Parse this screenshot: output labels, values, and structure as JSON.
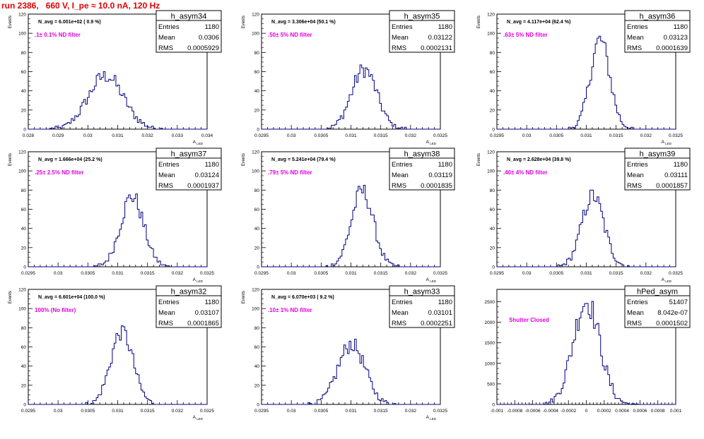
{
  "page_title": "run 2386,   660 V, I_pe ≈ 10.0 nA, 120 Hz",
  "colors": {
    "histogram": "#000080",
    "frame": "#000000",
    "annotation": "#e000e0",
    "title": "#e00000"
  },
  "chart_data": [
    {
      "type": "histogram",
      "name": "h_asym34",
      "stats": {
        "entries": "1180",
        "mean": "0.0306",
        "rms": "0.0005929"
      },
      "navg": "N_avg = 6.001e+02 ( 0.9 %)",
      "filter": ".1± 0.1% ND filter",
      "ylabel": "Events",
      "xlabel": "A_LED",
      "x_ticks": [
        "0.028",
        "0.029",
        "0.03",
        "0.031",
        "0.032",
        "0.033",
        "0.034"
      ],
      "xlim": [
        0.028,
        0.034
      ],
      "y_ticks": [
        "0",
        "20",
        "40",
        "60",
        "80",
        "100",
        "120"
      ],
      "ylim": [
        0,
        120
      ],
      "center": 0.0306,
      "sigma": 0.00059,
      "peak": 60
    },
    {
      "type": "histogram",
      "name": "h_asym35",
      "stats": {
        "entries": "1180",
        "mean": "0.03122",
        "rms": "0.0002131"
      },
      "navg": "N_avg = 3.306e+04 (50.1 %)",
      "filter": ".50± 5% ND filter",
      "ylabel": "Events",
      "xlabel": "A_LED",
      "x_ticks": [
        "0.0295",
        "0.03",
        "0.0305",
        "0.031",
        "0.0315",
        "0.032",
        "0.0325"
      ],
      "xlim": [
        0.0295,
        0.0325
      ],
      "y_ticks": [
        "0",
        "20",
        "40",
        "60",
        "80",
        "100",
        "120"
      ],
      "ylim": [
        0,
        120
      ],
      "center": 0.03122,
      "sigma": 0.000213,
      "peak": 67
    },
    {
      "type": "histogram",
      "name": "h_asym36",
      "stats": {
        "entries": "1180",
        "mean": "0.03123",
        "rms": "0.0001639"
      },
      "navg": "N_avg = 4.117e+04 (62.4 %)",
      "filter": ".63± 5% ND filter",
      "ylabel": "Events",
      "xlabel": "A_LED",
      "x_ticks": [
        "0.0295",
        "0.03",
        "0.0305",
        "0.031",
        "0.0315",
        "0.032",
        "0.0325"
      ],
      "xlim": [
        0.0295,
        0.0325
      ],
      "y_ticks": [
        "0",
        "20",
        "40",
        "60",
        "80",
        "100",
        "120"
      ],
      "ylim": [
        0,
        120
      ],
      "center": 0.03123,
      "sigma": 0.000164,
      "peak": 100
    },
    {
      "type": "histogram",
      "name": "h_asym37",
      "stats": {
        "entries": "1180",
        "mean": "0.03124",
        "rms": "0.0001937"
      },
      "navg": "N_avg = 1.666e+04 (25.2 %)",
      "filter": ".25± 2.5% ND filter",
      "ylabel": "Events",
      "xlabel": "A_LED",
      "x_ticks": [
        "0.0295",
        "0.03",
        "0.0305",
        "0.031",
        "0.0315",
        "0.032",
        "0.0325"
      ],
      "xlim": [
        0.0295,
        0.0325
      ],
      "y_ticks": [
        "0",
        "20",
        "40",
        "60",
        "80",
        "100",
        "120"
      ],
      "ylim": [
        0,
        120
      ],
      "center": 0.03124,
      "sigma": 0.000194,
      "peak": 79
    },
    {
      "type": "histogram",
      "name": "h_asym38",
      "stats": {
        "entries": "1180",
        "mean": "0.03119",
        "rms": "0.0001835"
      },
      "navg": "N_avg = 5.241e+04 (79.4 %)",
      "filter": ".79± 5% ND filter",
      "ylabel": "Events",
      "xlabel": "A_LED",
      "x_ticks": [
        "0.0295",
        "0.03",
        "0.0305",
        "0.031",
        "0.0315",
        "0.032",
        "0.0325"
      ],
      "xlim": [
        0.0295,
        0.0325
      ],
      "y_ticks": [
        "0",
        "20",
        "40",
        "60",
        "80",
        "100",
        "120"
      ],
      "ylim": [
        0,
        120
      ],
      "center": 0.03119,
      "sigma": 0.000184,
      "peak": 85
    },
    {
      "type": "histogram",
      "name": "h_asym39",
      "stats": {
        "entries": "1180",
        "mean": "0.03111",
        "rms": "0.0001857"
      },
      "navg": "N_avg = 2.628e+04 (39.8 %)",
      "filter": ".40± 4% ND filter",
      "ylabel": "Events",
      "xlabel": "A_LED",
      "x_ticks": [
        "0.0295",
        "0.03",
        "0.0305",
        "0.031",
        "0.0315",
        "0.032",
        "0.0325"
      ],
      "xlim": [
        0.0295,
        0.0325
      ],
      "y_ticks": [
        "0",
        "20",
        "40",
        "60",
        "80",
        "100",
        "120"
      ],
      "ylim": [
        0,
        120
      ],
      "center": 0.03111,
      "sigma": 0.000186,
      "peak": 80
    },
    {
      "type": "histogram",
      "name": "h_asym32",
      "stats": {
        "entries": "1180",
        "mean": "0.03107",
        "rms": "0.0001865"
      },
      "navg": "N_avg = 6.601e+04 (100.0 %)",
      "filter": "100% (No filter)",
      "ylabel": "Events",
      "xlabel": "A_LED",
      "x_ticks": [
        "0.0295",
        "0.03",
        "0.0305",
        "0.031",
        "0.0315",
        "0.032",
        "0.0325"
      ],
      "xlim": [
        0.0295,
        0.0325
      ],
      "y_ticks": [
        "0",
        "20",
        "40",
        "60",
        "80",
        "100",
        "120"
      ],
      "ylim": [
        0,
        120
      ],
      "center": 0.03107,
      "sigma": 0.000187,
      "peak": 82
    },
    {
      "type": "histogram",
      "name": "h_asym33",
      "stats": {
        "entries": "1180",
        "mean": "0.03101",
        "rms": "0.0002251"
      },
      "navg": "N_avg = 6.070e+03 ( 9.2 %)",
      "filter": ".10± 1% ND filter",
      "ylabel": "Events",
      "xlabel": "A_LED",
      "x_ticks": [
        "0.0295",
        "0.03",
        "0.0305",
        "0.031",
        "0.0315",
        "0.032",
        "0.0325"
      ],
      "xlim": [
        0.0295,
        0.0325
      ],
      "y_ticks": [
        "0",
        "20",
        "40",
        "60",
        "80",
        "100",
        "120"
      ],
      "ylim": [
        0,
        120
      ],
      "center": 0.03101,
      "sigma": 0.000225,
      "peak": 68
    },
    {
      "type": "histogram",
      "name": "hPed_asym",
      "stats": {
        "entries": "51407",
        "mean": "8.042e-07",
        "rms": "0.0001502"
      },
      "navg": "",
      "filter": "Shutter Closed",
      "ylabel": "",
      "xlabel": "",
      "x_ticks": [
        "-0.001",
        "-0.0008",
        "-0.0006",
        "-0.0004",
        "-0.0002",
        "0",
        "0.0002",
        "0.0004",
        "0.0006",
        "0.0008",
        "0.001"
      ],
      "xlim": [
        -0.001,
        0.001
      ],
      "y_ticks": [
        "0",
        "500",
        "1000",
        "1500",
        "2000",
        "2500"
      ],
      "ylim": [
        0,
        2800
      ],
      "center": 8e-07,
      "sigma": 0.00015,
      "peak": 2700
    }
  ]
}
